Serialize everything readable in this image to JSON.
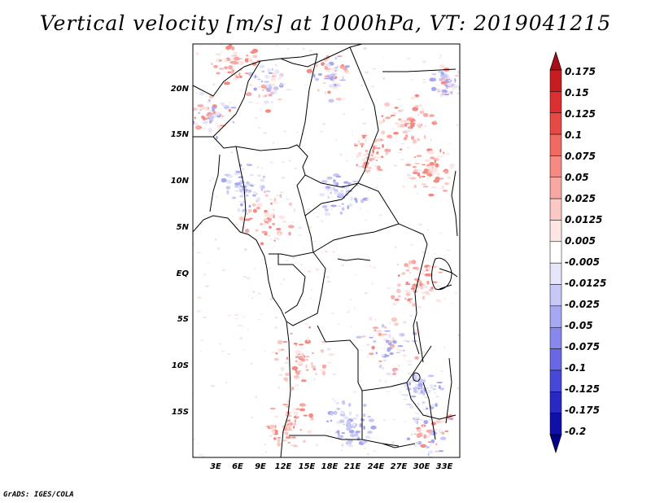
{
  "title": "Vertical velocity [m/s] at 1000hPa, VT: 2019041215",
  "credit": "GrADS: IGES/COLA",
  "lat_labels": [
    "20N",
    "15N",
    "10N",
    "5N",
    "EQ",
    "5S",
    "10S",
    "15S"
  ],
  "lon_labels": [
    "3E",
    "6E",
    "9E",
    "12E",
    "15E",
    "18E",
    "21E",
    "24E",
    "27E",
    "30E",
    "33E"
  ],
  "colorbar": {
    "labels": [
      "0.175",
      "0.15",
      "0.125",
      "0.1",
      "0.075",
      "0.05",
      "0.025",
      "0.0125",
      "0.005",
      "-0.005",
      "-0.0125",
      "-0.025",
      "-0.05",
      "-0.075",
      "-0.1",
      "-0.125",
      "-0.175",
      "-0.2"
    ],
    "colors": [
      "#a50f15",
      "#c81d20",
      "#dc2f2f",
      "#e74a45",
      "#ef6b62",
      "#f48a82",
      "#f8a8a2",
      "#fbc8c4",
      "#fde6e4",
      "#ffffff",
      "#e6e6fb",
      "#c8c8f7",
      "#a8a8f2",
      "#8888ec",
      "#6868e4",
      "#4848d8",
      "#2828c4",
      "#1010a8",
      "#00008a"
    ]
  }
}
